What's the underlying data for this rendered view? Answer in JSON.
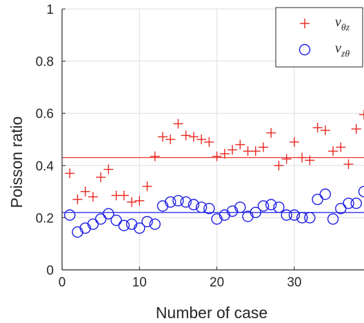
{
  "chart_data": {
    "type": "scatter",
    "xlabel": "Number of case",
    "ylabel": "Poisson ratio",
    "xlim": [
      0,
      39
    ],
    "ylim": [
      0,
      1
    ],
    "xticks": [
      0,
      10,
      20,
      30
    ],
    "yticks": [
      0,
      0.2,
      0.4,
      0.6,
      0.8,
      1
    ],
    "xtick_labels": [
      "0",
      "10",
      "20",
      "30"
    ],
    "ytick_labels": [
      "0",
      "0.2",
      "0.4",
      "0.6",
      "0.8",
      "1"
    ],
    "grid": true,
    "legend_position": "top-right",
    "x": [
      1,
      2,
      3,
      4,
      5,
      6,
      7,
      8,
      9,
      10,
      11,
      12,
      13,
      14,
      15,
      16,
      17,
      18,
      19,
      20,
      21,
      22,
      23,
      24,
      25,
      26,
      27,
      28,
      29,
      30,
      31,
      32,
      33,
      34,
      35,
      36,
      37,
      38,
      39
    ],
    "series": [
      {
        "name_symbol": "ν",
        "name_subscript": "θz",
        "marker": "plus",
        "color": "#e8241e",
        "values": [
          0.37,
          0.27,
          0.3,
          0.28,
          0.355,
          0.385,
          0.285,
          0.285,
          0.26,
          0.265,
          0.32,
          0.435,
          0.51,
          0.5,
          0.56,
          0.515,
          0.51,
          0.5,
          0.49,
          0.435,
          0.445,
          0.46,
          0.48,
          0.455,
          0.455,
          0.47,
          0.525,
          0.4,
          0.425,
          0.49,
          0.43,
          0.42,
          0.545,
          0.535,
          0.455,
          0.47,
          0.405,
          0.54,
          0.595
        ],
        "mean": 0.43
      },
      {
        "name_symbol": "ν",
        "name_subscript": "zθ",
        "marker": "circle",
        "color": "#1a1ae6",
        "values": [
          0.21,
          0.145,
          0.16,
          0.175,
          0.195,
          0.215,
          0.19,
          0.17,
          0.175,
          0.16,
          0.185,
          0.175,
          0.245,
          0.26,
          0.265,
          0.26,
          0.25,
          0.24,
          0.235,
          0.195,
          0.21,
          0.225,
          0.24,
          0.205,
          0.22,
          0.245,
          0.25,
          0.24,
          0.21,
          0.21,
          0.2,
          0.2,
          0.27,
          0.29,
          0.195,
          0.235,
          0.255,
          0.255,
          0.3
        ],
        "mean": 0.22
      }
    ]
  }
}
